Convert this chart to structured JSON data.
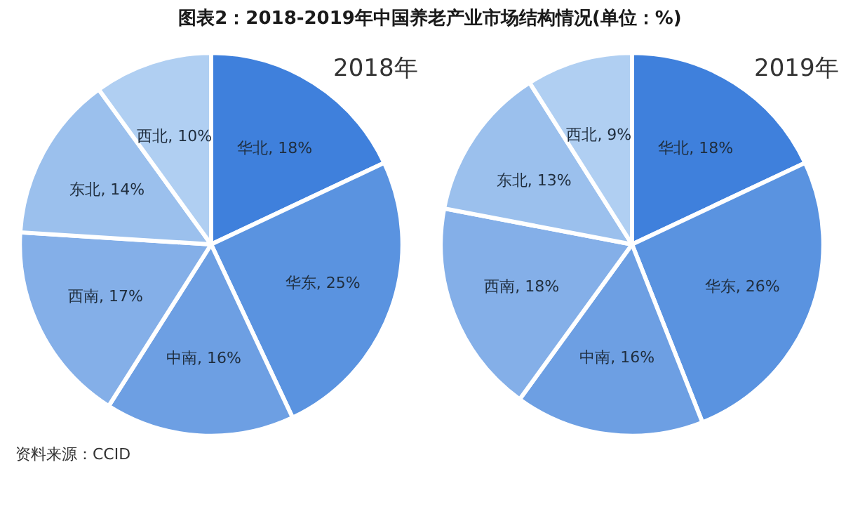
{
  "chart_data": [
    {
      "type": "pie",
      "title": "图表2：2018-2019年中国养老产业市场结构情况(单位：%)",
      "subtitle": "2018年",
      "categories": [
        "华北",
        "华东",
        "中南",
        "西南",
        "东北",
        "西北"
      ],
      "values": [
        18,
        25,
        16,
        17,
        14,
        10
      ],
      "colors": [
        "#3f80dc",
        "#5a93e0",
        "#6d9fe3",
        "#84afe8",
        "#9bc0ed",
        "#b0cff2"
      ],
      "value_labels": [
        "18%",
        "25%",
        "16%",
        "17%",
        "14%",
        "10%"
      ],
      "annotations": [
        "资料来源：CCID"
      ]
    },
    {
      "type": "pie",
      "subtitle": "2019年",
      "categories": [
        "华北",
        "华东",
        "中南",
        "西南",
        "东北",
        "西北"
      ],
      "values": [
        18,
        26,
        16,
        18,
        13,
        9
      ],
      "colors": [
        "#3f80dc",
        "#5a93e0",
        "#6d9fe3",
        "#84afe8",
        "#9bc0ed",
        "#b0cff2"
      ],
      "value_labels": [
        "18%",
        "26%",
        "16%",
        "18%",
        "13%",
        "9%"
      ]
    }
  ]
}
